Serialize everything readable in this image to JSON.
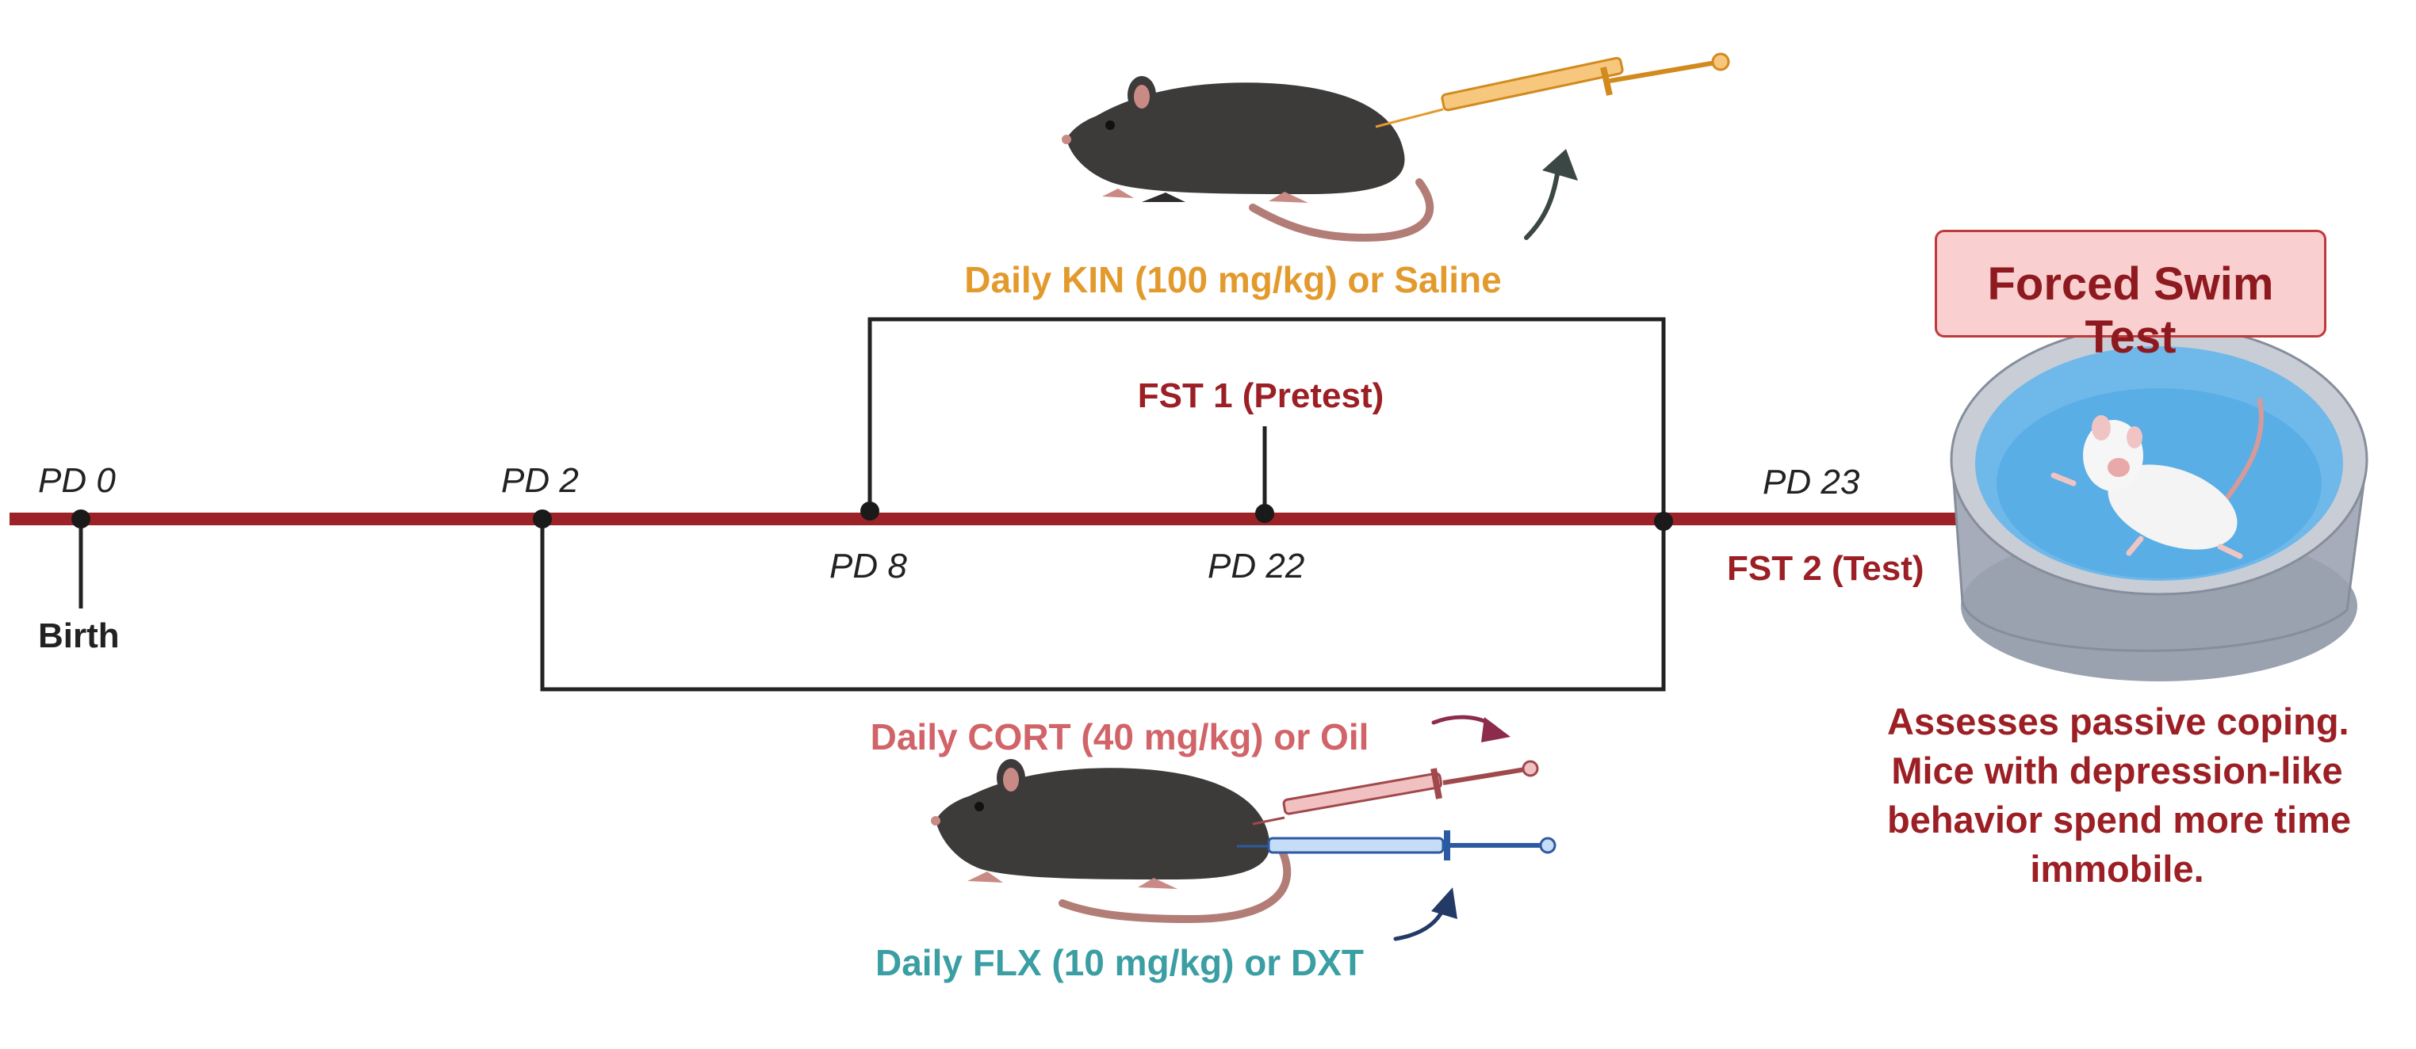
{
  "colors": {
    "timeline": "#9b2226",
    "bracket": "#222222",
    "kin": "#e39a2d",
    "cort": "#d16468",
    "flx": "#3a9ea3",
    "fst": "#9b1f24",
    "fst_box_fill": "#f9cfcf",
    "water": "#6fb8ea",
    "mouse_body": "#3d3a3a",
    "mouse_skin": "#d7a29a"
  },
  "timepoints": {
    "pd0": "PD 0",
    "pd2": "PD 2",
    "pd8": "PD 8",
    "pd22": "PD 22",
    "pd23": "PD 23"
  },
  "events": {
    "birth": "Birth",
    "fst1": "FST 1 (Pretest)",
    "fst2": "FST 2 (Test)"
  },
  "treatments": {
    "kin": "Daily KIN (100 mg/kg) or Saline",
    "cort": "Daily CORT (40 mg/kg) or Oil",
    "flx": "Daily FLX (10 mg/kg) or DXT"
  },
  "fst_panel": {
    "title": "Forced Swim Test",
    "description": [
      "Assesses passive coping.",
      "Mice with depression-like",
      "behavior spend more time",
      "immobile."
    ]
  },
  "icons": [
    "mouse-icon",
    "syringe-icon",
    "curved-arrow-icon",
    "swim-tank-icon",
    "white-mouse-icon"
  ]
}
